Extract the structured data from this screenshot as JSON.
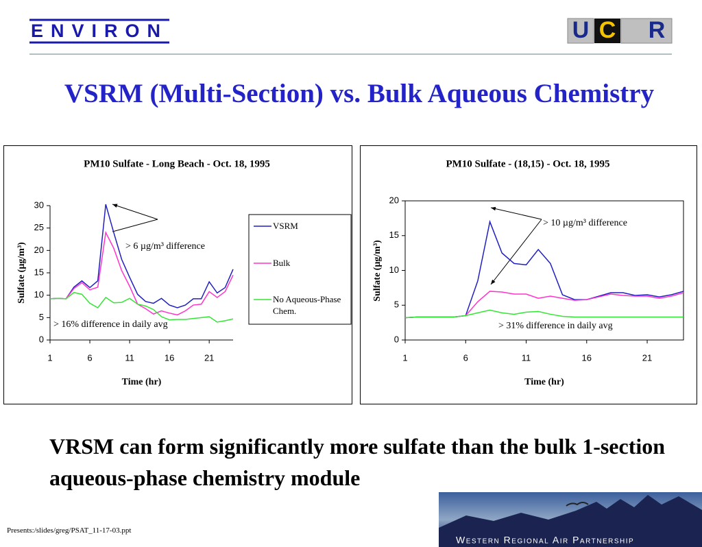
{
  "header": {
    "logo_left": "ENVIRON",
    "logo_right": [
      "U",
      "C",
      "R"
    ]
  },
  "title": "VSRM (Multi-Section) vs. Bulk Aqueous Chemistry",
  "chart_data": [
    {
      "type": "line",
      "title": "PM10 Sulfate - Long Beach - Oct. 18, 1995",
      "x_label": "Time (hr)",
      "y_label": "Sulfate (µg/m³)",
      "x": [
        1,
        2,
        3,
        4,
        5,
        6,
        7,
        8,
        9,
        10,
        11,
        12,
        13,
        14,
        15,
        16,
        17,
        18,
        19,
        20,
        21,
        22,
        23,
        24
      ],
      "xlim": [
        1,
        24
      ],
      "xticks": [
        1,
        6,
        11,
        16,
        21
      ],
      "ylim": [
        0,
        30
      ],
      "yticks": [
        0,
        5,
        10,
        15,
        20,
        25,
        30
      ],
      "legend": "right",
      "series": [
        {
          "name": "VSRM",
          "color": "#1f1fbf",
          "values": [
            9.2,
            9.3,
            9.2,
            11.8,
            13.2,
            11.7,
            13.2,
            30.3,
            24,
            18,
            14,
            10.2,
            8.6,
            8.2,
            9.3,
            7.8,
            7.2,
            7.8,
            9.2,
            9.2,
            13,
            10.5,
            11.7,
            15.8
          ]
        },
        {
          "name": "Bulk",
          "color": "#ff33cc",
          "values": [
            9.2,
            9.3,
            9.2,
            11.5,
            12.8,
            11.2,
            11.8,
            24,
            20.5,
            15.5,
            12,
            8,
            7,
            5.8,
            6.5,
            6,
            5.6,
            6.5,
            7.8,
            8,
            10.8,
            9.5,
            10.8,
            14.5
          ]
        },
        {
          "name": "No Aqueous-Phase Chem.",
          "color": "#33e633",
          "values": [
            9.2,
            9.3,
            9.2,
            10.6,
            10.2,
            8.2,
            7.2,
            9.5,
            8.3,
            8.4,
            9.3,
            8,
            7.6,
            6.8,
            5.2,
            4.5,
            4.6,
            4.6,
            4.8,
            5,
            5.2,
            4,
            4.3,
            4.7
          ]
        }
      ],
      "annotations": [
        "> 6 µg/m³ difference",
        "> 16% difference in daily avg"
      ]
    },
    {
      "type": "line",
      "title": "PM10 Sulfate - (18,15) - Oct. 18, 1995",
      "x_label": "Time (hr)",
      "y_label": "Sulfate (µg/m³)",
      "x": [
        1,
        2,
        3,
        4,
        5,
        6,
        7,
        8,
        9,
        10,
        11,
        12,
        13,
        14,
        15,
        16,
        17,
        18,
        19,
        20,
        21,
        22,
        23,
        24
      ],
      "xlim": [
        1,
        24
      ],
      "xticks": [
        1,
        6,
        11,
        16,
        21
      ],
      "ylim": [
        0,
        20
      ],
      "yticks": [
        0,
        5,
        10,
        15,
        20
      ],
      "series": [
        {
          "color": "#1f1fbf",
          "values": [
            3.2,
            3.3,
            3.3,
            3.3,
            3.3,
            3.5,
            8.5,
            17,
            12.5,
            11,
            10.8,
            13,
            11,
            6.5,
            5.8,
            5.8,
            6.3,
            6.8,
            6.8,
            6.4,
            6.5,
            6.2,
            6.5,
            7
          ]
        },
        {
          "color": "#ff33cc",
          "values": [
            3.2,
            3.3,
            3.3,
            3.3,
            3.3,
            3.5,
            5.5,
            7,
            6.9,
            6.6,
            6.6,
            6,
            6.3,
            6,
            5.7,
            5.8,
            6.2,
            6.6,
            6.4,
            6.3,
            6.3,
            6,
            6.3,
            6.8
          ]
        },
        {
          "color": "#33e633",
          "values": [
            3.2,
            3.3,
            3.3,
            3.3,
            3.3,
            3.5,
            3.9,
            4.3,
            3.9,
            3.7,
            4.0,
            4.1,
            3.7,
            3.4,
            3.3,
            3.3,
            3.3,
            3.3,
            3.3,
            3.3,
            3.3,
            3.3,
            3.3,
            3.3
          ]
        }
      ],
      "annotations": [
        "> 10 µg/m³ difference",
        "> 31% difference in daily avg"
      ]
    }
  ],
  "body": "VRSM can form significantly more sulfate than the bulk 1-section aqueous-phase chemistry module",
  "footer": {
    "path": "Presents:/slides/greg/PSAT_11-17-03.ppt",
    "banner": "Western Regional Air Partnership"
  }
}
